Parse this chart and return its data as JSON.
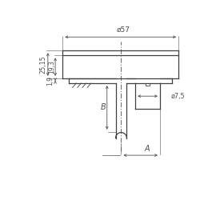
{
  "bg_color": "#ffffff",
  "line_color": "#404040",
  "dim_color": "#505050",
  "dim_57_text": "ø57",
  "dim_25_text": "25,15",
  "dim_193_text": "19,3",
  "dim_19_text": "1,9",
  "dim_B_text": "B",
  "dim_A_text": "A",
  "dim_75_text": "ø7,5"
}
